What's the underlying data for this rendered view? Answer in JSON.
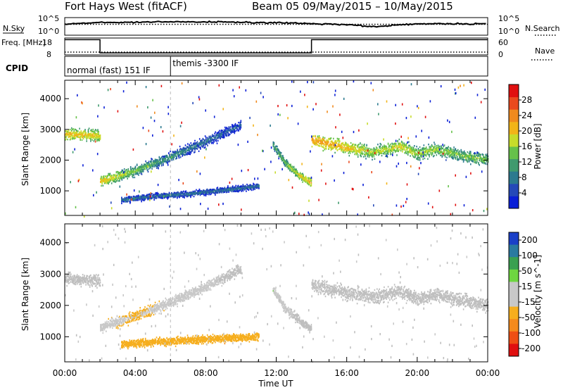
{
  "header": {
    "site": "Fort Hays West (fitACF)",
    "beam_range": "Beam 05 09/May/2015 – 10/May/2015"
  },
  "colors": {
    "power_scale": [
      "#0a1fd6",
      "#2549b8",
      "#2c7a8f",
      "#3f9a6e",
      "#66c14a",
      "#c7dc2a",
      "#f2b418",
      "#f08a1e",
      "#ea4a1e",
      "#e01010"
    ],
    "velocity_scale": [
      "#e01010",
      "#ef4f14",
      "#f58a1c",
      "#f6ae1e",
      "#c8c8c8",
      "#c8c8c8",
      "#6ed640",
      "#3aa050",
      "#2a7aa0",
      "#1a40c8"
    ],
    "ground_scatter": "#bfbfbf"
  },
  "chart_data": [
    {
      "type": "line",
      "panel": "noise",
      "left_label": "N.Sky",
      "right_label": "N.Search",
      "left_ticks": [
        "10^5",
        "10^0"
      ],
      "right_ticks": [
        "10^5",
        "10^0"
      ],
      "series": [
        {
          "name": "N.Sky",
          "x": [
            0,
            2,
            4,
            6,
            8,
            10,
            12,
            14,
            16,
            17.5,
            20,
            24
          ],
          "y": [
            3.2,
            3.6,
            3.7,
            3.8,
            3.8,
            3.7,
            3.5,
            3.3,
            3.0,
            2.4,
            3.3,
            3.2
          ]
        },
        {
          "name": "N.Search",
          "x": [
            0,
            24
          ],
          "y": [
            3.1,
            3.1
          ]
        }
      ]
    },
    {
      "type": "line",
      "panel": "frequency",
      "left_label": "Freq. [MHz]",
      "right_label": "Nave",
      "left_ticks": [
        "18",
        "8"
      ],
      "right_ticks": [
        "60",
        "0"
      ],
      "ylim_left": [
        8,
        18
      ],
      "ylim_right": [
        0,
        60
      ],
      "series": [
        {
          "name": "Freq.",
          "x": [
            0,
            2,
            2,
            14,
            14,
            24
          ],
          "y": [
            17,
            17,
            9.2,
            9.2,
            17,
            17
          ]
        },
        {
          "name": "Nave",
          "x": [
            0,
            24
          ],
          "y": [
            10,
            10
          ]
        }
      ]
    },
    {
      "type": "bar",
      "panel": "cpid",
      "label": "CPID",
      "segments": [
        {
          "start": 0,
          "end": 6,
          "name": "normal (fast) 151 IF"
        },
        {
          "start": 6,
          "end": 24,
          "name": "themis -3300 IF"
        }
      ]
    },
    {
      "type": "heatmap",
      "panel": "power",
      "ylabel": "Slant Range [km]",
      "colorbar_label": "Power [dB]",
      "colorbar_ticks": [
        4,
        8,
        12,
        16,
        20,
        24,
        28
      ],
      "xlim": [
        0,
        24
      ],
      "ylim": [
        200,
        4600
      ],
      "yticks": [
        1000,
        2000,
        3000,
        4000
      ],
      "bands": [
        {
          "x": [
            0,
            2
          ],
          "y": [
            2850,
            2780
          ],
          "w": 220,
          "v": [
            20,
            18
          ]
        },
        {
          "x": [
            2,
            4,
            6,
            8,
            10
          ],
          "y": [
            1300,
            1650,
            2100,
            2600,
            3150
          ],
          "w": 200,
          "v": [
            20,
            14,
            10,
            8,
            6
          ]
        },
        {
          "x": [
            3.2,
            5,
            7,
            9,
            11
          ],
          "y": [
            700,
            820,
            900,
            1020,
            1150
          ],
          "w": 110,
          "v": [
            8,
            8,
            8,
            8,
            8
          ]
        },
        {
          "x": [
            11.8,
            12.5,
            13.3,
            14
          ],
          "y": [
            2500,
            1900,
            1500,
            1250
          ],
          "w": 160,
          "v": [
            12,
            14,
            18,
            20
          ]
        },
        {
          "x": [
            14,
            16,
            17.5,
            19,
            20,
            21,
            22.5,
            24
          ],
          "y": [
            2650,
            2400,
            2250,
            2450,
            2200,
            2350,
            2150,
            2000
          ],
          "w": 240,
          "v": [
            22,
            20,
            16,
            18,
            16,
            16,
            14,
            14
          ]
        }
      ]
    },
    {
      "type": "heatmap",
      "panel": "velocity",
      "xlabel": "Time UT",
      "ylabel": "Slant Range [km]",
      "colorbar_label": "Velocity [m s^-1]",
      "colorbar_ticks": [
        "200",
        "100",
        "50",
        "15",
        "-15",
        "-50",
        "-100",
        "-200"
      ],
      "xticks": [
        "00:00",
        "04:00",
        "08:00",
        "12:00",
        "16:00",
        "20:00",
        "00:00"
      ],
      "xlim": [
        0,
        24
      ],
      "ylim": [
        200,
        4600
      ],
      "yticks": [
        1000,
        2000,
        3000,
        4000
      ],
      "bands": [
        {
          "x": [
            0,
            2
          ],
          "y": [
            2850,
            2780
          ],
          "w": 220,
          "v": [
            0,
            0
          ]
        },
        {
          "x": [
            2,
            4,
            6,
            8,
            10
          ],
          "y": [
            1300,
            1650,
            2100,
            2600,
            3150
          ],
          "w": 200,
          "v": [
            -30,
            -40,
            -30,
            -20,
            0
          ]
        },
        {
          "x": [
            3.2,
            5,
            7,
            9,
            11
          ],
          "y": [
            760,
            830,
            880,
            950,
            1000
          ],
          "w": 150,
          "v": [
            -40,
            -50,
            -60,
            -70,
            -70
          ]
        },
        {
          "x": [
            11.8,
            12.5,
            13.3,
            14
          ],
          "y": [
            2500,
            1900,
            1500,
            1250
          ],
          "w": 160,
          "v": [
            40,
            35,
            0,
            0
          ]
        },
        {
          "x": [
            14,
            16,
            17.5,
            19,
            20,
            21,
            22.5,
            24
          ],
          "y": [
            2650,
            2400,
            2250,
            2450,
            2200,
            2350,
            2150,
            2000
          ],
          "w": 260,
          "v": [
            0,
            0,
            0,
            0,
            0,
            0,
            0,
            0
          ]
        }
      ]
    }
  ]
}
